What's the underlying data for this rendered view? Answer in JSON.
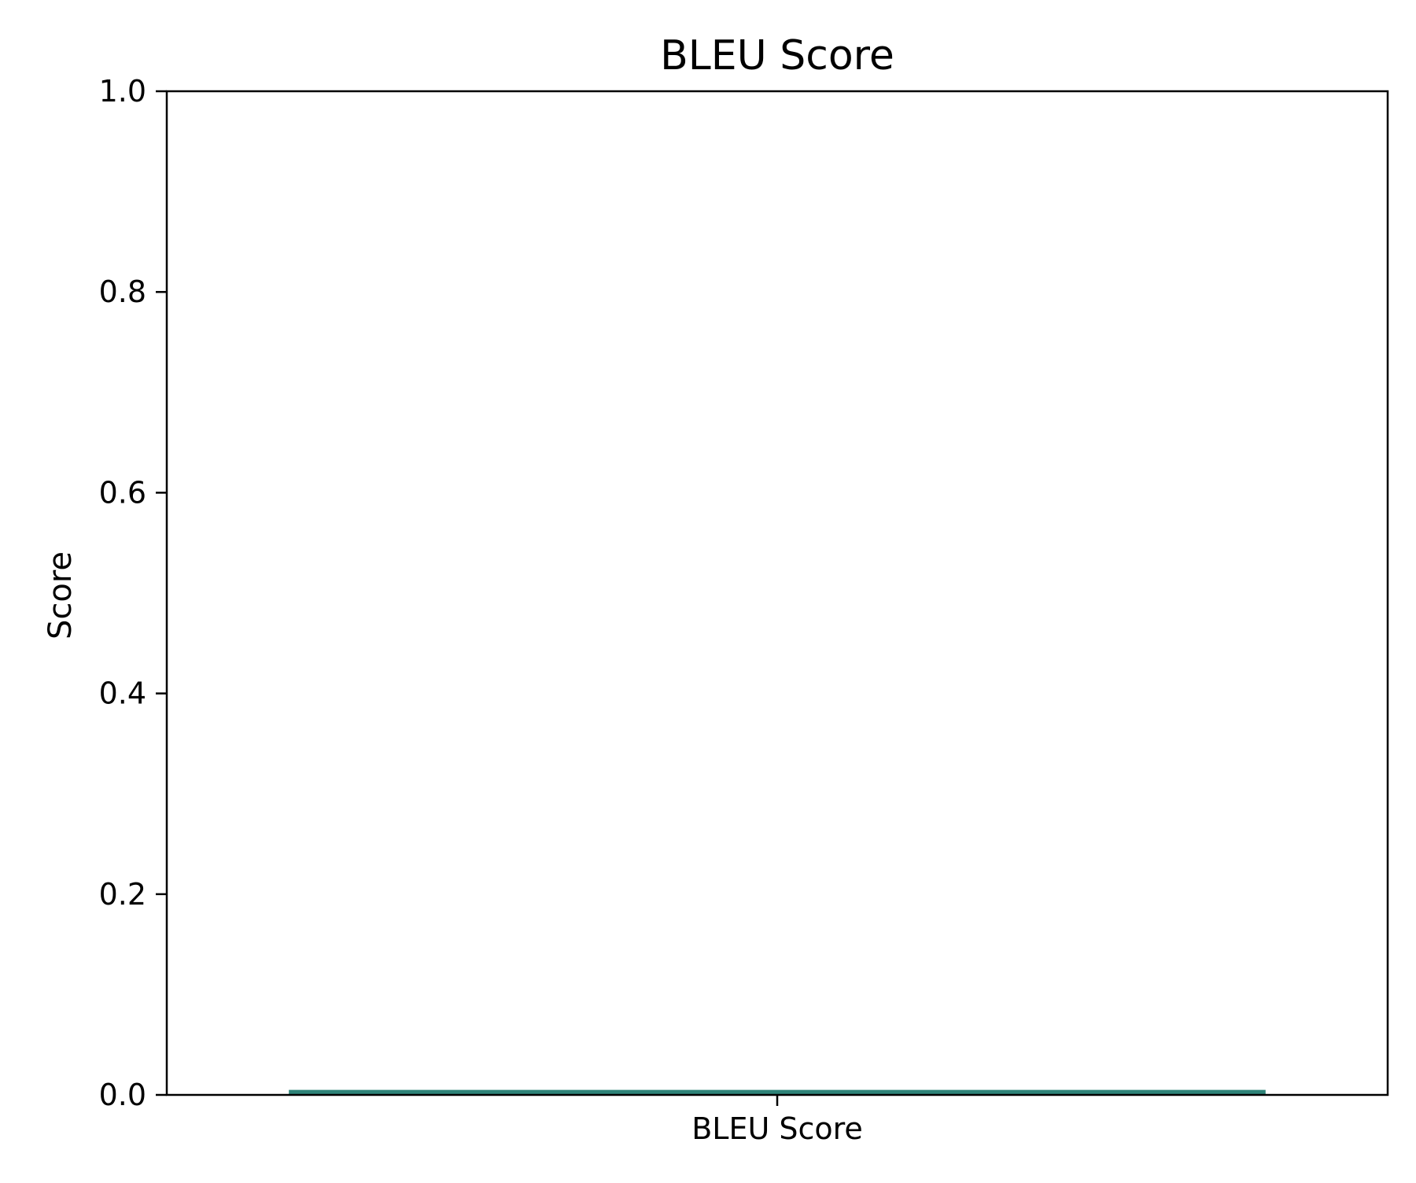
{
  "chart_data": {
    "type": "bar",
    "title": "BLEU Score",
    "xlabel": "",
    "ylabel": "Score",
    "categories": [
      "BLEU Score"
    ],
    "values": [
      0.005
    ],
    "ylim": [
      0,
      1.0
    ],
    "yticks": [
      "0.0",
      "0.2",
      "0.4",
      "0.6",
      "0.8",
      "1.0"
    ],
    "grid": false,
    "legend": "none",
    "colors": {
      "bar": "#2e8378",
      "axes": "#000000",
      "background": "#ffffff"
    }
  }
}
